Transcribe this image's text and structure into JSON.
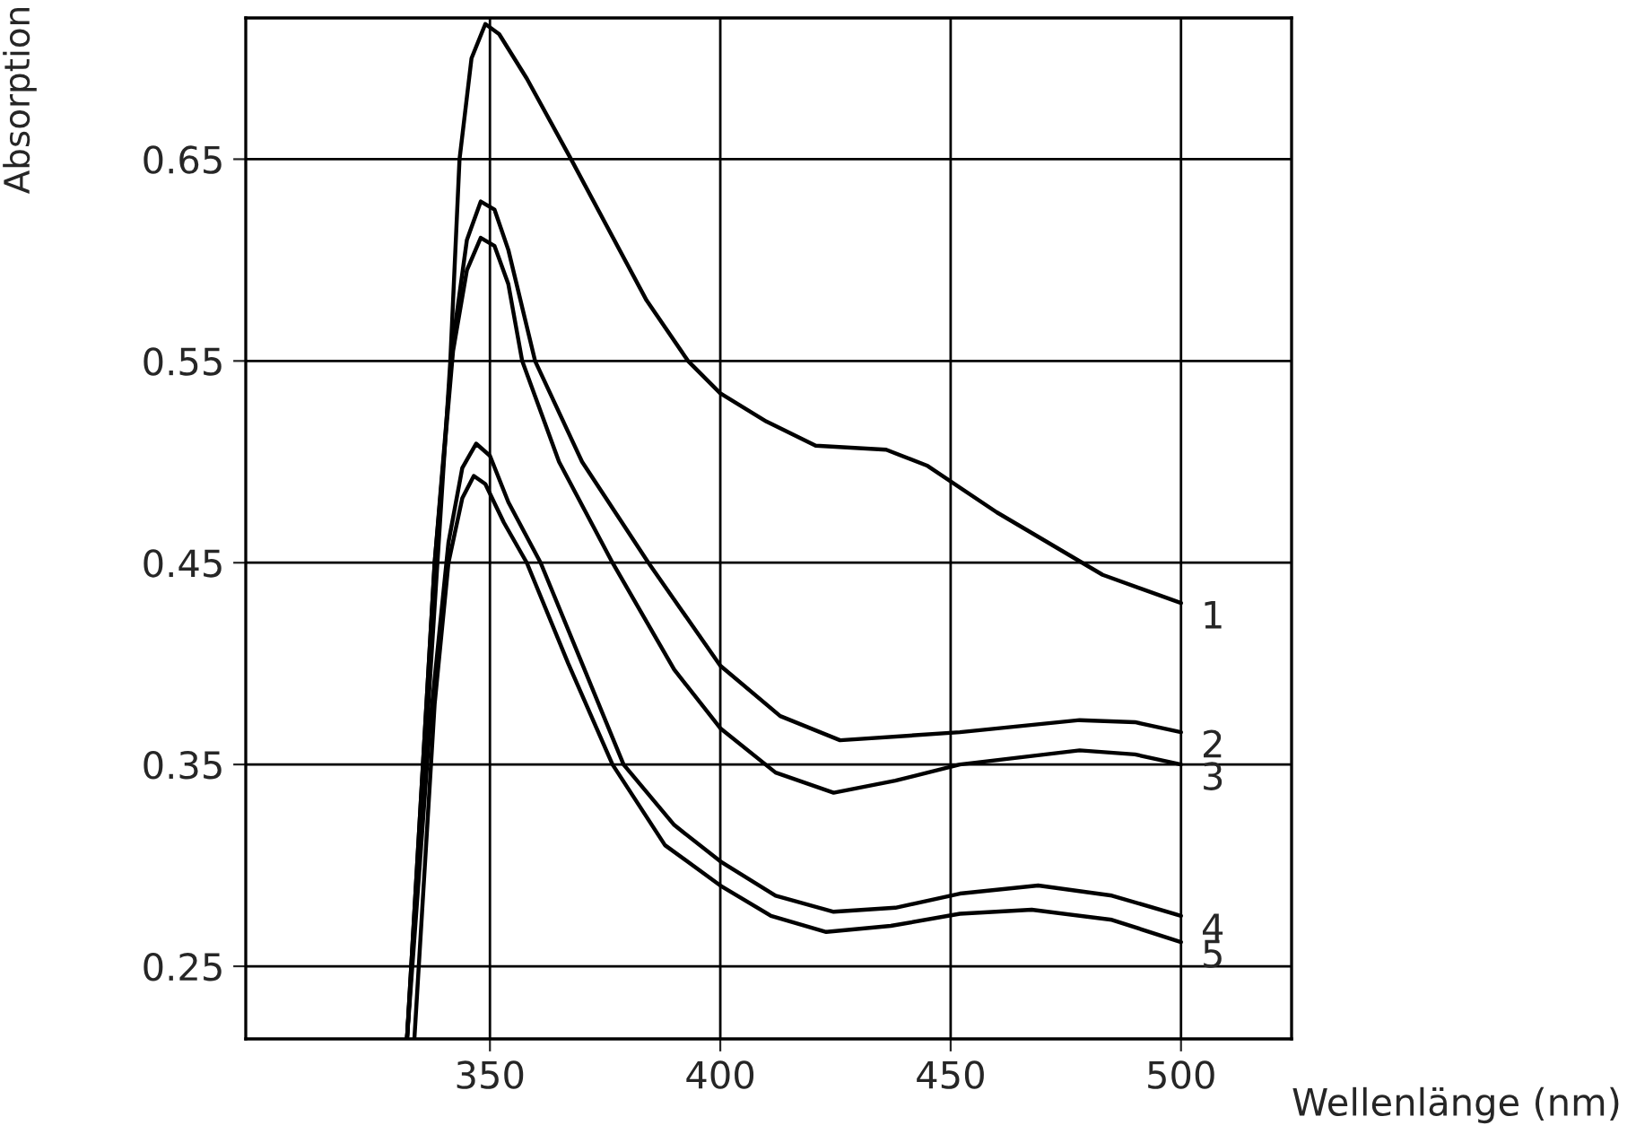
{
  "chart_data": {
    "type": "line",
    "xlabel": "Wellenlänge (nm)",
    "ylabel": "Absorption",
    "xlim": [
      297,
      524
    ],
    "ylim": [
      0.214,
      0.72
    ],
    "xticks": [
      350,
      400,
      450,
      500
    ],
    "yticks": [
      0.25,
      0.35,
      0.45,
      0.55,
      0.65
    ],
    "grid": true,
    "legend": false,
    "series": [
      {
        "name": "1",
        "color": "#000000",
        "x": [
          332,
          341.4,
          343.4,
          346,
          349,
          352,
          358,
          367.6,
          384,
          393,
          400,
          410,
          420.7,
          436,
          445,
          460,
          483,
          500
        ],
        "values": [
          0.214,
          0.55,
          0.65,
          0.7,
          0.717,
          0.712,
          0.69,
          0.65,
          0.58,
          0.55,
          0.534,
          0.52,
          0.508,
          0.506,
          0.498,
          0.475,
          0.444,
          0.43
        ]
      },
      {
        "name": "2",
        "color": "#000000",
        "x": [
          332,
          338,
          342,
          345,
          348,
          351,
          354,
          359.8,
          370,
          384.4,
          400,
          413,
          426,
          452,
          478,
          490,
          500
        ],
        "values": [
          0.214,
          0.45,
          0.56,
          0.61,
          0.629,
          0.625,
          0.605,
          0.55,
          0.5,
          0.45,
          0.399,
          0.374,
          0.362,
          0.366,
          0.372,
          0.371,
          0.366
        ]
      },
      {
        "name": "3",
        "color": "#000000",
        "x": [
          332,
          338,
          342,
          345,
          348,
          351,
          354,
          357,
          365,
          376.6,
          390,
          400,
          412,
          424.6,
          438,
          452,
          478,
          490,
          500
        ],
        "values": [
          0.214,
          0.45,
          0.555,
          0.595,
          0.611,
          0.607,
          0.588,
          0.55,
          0.5,
          0.45,
          0.397,
          0.368,
          0.346,
          0.336,
          0.342,
          0.35,
          0.357,
          0.355,
          0.35
        ]
      },
      {
        "name": "4",
        "color": "#000000",
        "x": [
          332,
          337,
          341,
          344,
          347,
          350,
          354,
          361,
          370,
          379,
          390,
          400,
          412,
          424.6,
          438,
          452,
          469,
          485,
          500
        ],
        "values": [
          0.214,
          0.37,
          0.46,
          0.497,
          0.509,
          0.503,
          0.48,
          0.45,
          0.4,
          0.35,
          0.32,
          0.302,
          0.285,
          0.277,
          0.279,
          0.286,
          0.29,
          0.285,
          0.275
        ]
      },
      {
        "name": "5",
        "color": "#000000",
        "x": [
          333.6,
          338,
          341,
          344,
          346.5,
          349,
          353,
          358,
          367,
          376.6,
          388,
          400,
          411,
          423,
          437,
          452,
          467.6,
          485,
          500
        ],
        "values": [
          0.214,
          0.38,
          0.45,
          0.482,
          0.493,
          0.489,
          0.47,
          0.45,
          0.4,
          0.35,
          0.31,
          0.29,
          0.275,
          0.267,
          0.27,
          0.276,
          0.278,
          0.273,
          0.262
        ]
      }
    ]
  }
}
